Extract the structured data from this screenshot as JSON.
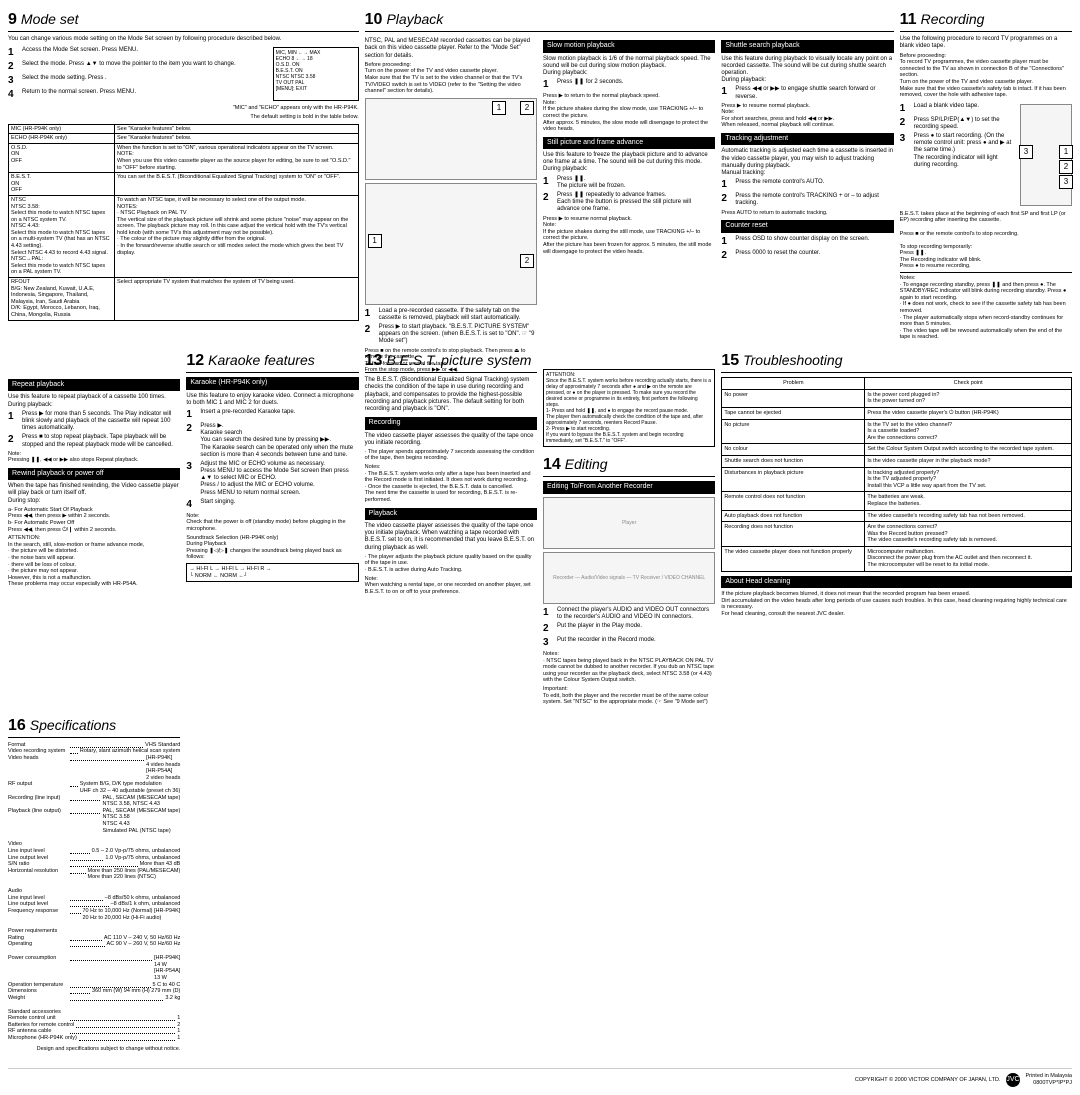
{
  "sections": {
    "s9": {
      "num": "9",
      "title": "Mode set",
      "intro": "You can change various mode setting on the Mode Set screen by following procedure described below.",
      "steps": [
        {
          "n": "1",
          "t": "Access the Mode Set screen. Press MENU."
        },
        {
          "n": "2",
          "t": "Select the mode. Press ▲▼ to move the pointer to the item you want to change."
        },
        {
          "n": "3",
          "t": "Select the mode setting. Press ."
        },
        {
          "n": "4",
          "t": "Return to the normal screen. Press MENU."
        }
      ],
      "boxnote": "MIC, MIN ←→ MAX\nECHO 8 ←→ 18\nO.S.D. ON\nB.E.S.T. ON\nNTSC NTSC 3.58\nTV OUT PAL\n[MENU]: EXIT",
      "boxfoot": "\"MIC\" and \"ECHO\" appears only with the HR-P94K.",
      "tablefoot": "The default setting is bold in the table below.",
      "settings": [
        [
          "MIC (HR-P94K only)",
          "See \"Karaoke features\" below."
        ],
        [
          "ECHO (HR-P94K only)",
          "See \"Karaoke features\" below."
        ],
        [
          "O.S.D.\nON\nOFF",
          "When the function is set to \"ON\", various operational indicators appear on the TV screen.\nNOTE:\nWhen you use this video cassette player as the source player for editing, be sure to set \"O.S.D.\" to \"OFF\" before starting."
        ],
        [
          "B.E.S.T.\nON\nOFF",
          "You can set the B.E.S.T. (Biconditional Equalized Signal Tracking) system to \"ON\" or \"OFF\"."
        ],
        [
          "NTSC\nNTSC 3.58:\nSelect this mode to watch NTSC tapes on a NTSC system TV.\nNTSC 4.43:\nSelect this mode to watch NTSC tapes on a multi-system TV (that has an NTSC 4.43 setting).\nSelect NTSC 4.43 to record 4.43 signal.\nNTSC→PAL:\nSelect this mode to watch NTSC tapes on a PAL system TV.",
          "To watch an NTSC tape, it will be necessary to select one of the output mode.\nNOTES:\n· NTSC Playback on PAL TV\nThe vertical size of the playback picture will shrink and some picture \"noise\" may appear on the screen. The playback picture may roll. In this case adjust the vertical hold with the TV's vertical hold knob (with some TV's this adjustment may not be possible).\n· The colour of the picture may slightly differ from the original.\n· In the forward/reverse shuttle search or still modes select the mode which gives the best TV display."
        ],
        [
          "RFOUT\nB/G: New Zealand, Kuwait, U.A.E, Indonesia, Singapore, Thailand, Malaysia, Iran, Saudi Arabia\nD/K: Egypt, Morocco, Lebanon, Iraq, China, Mongolia, Russia",
          "Select appropriate TV system that matches the system of TV being used."
        ]
      ]
    },
    "s10": {
      "num": "10",
      "title": "Playback",
      "intro": "NTSC, PAL and MESECAM recorded cassettes can be played back on this video cassette player. Refer to the \"Mode Set\" section for details.",
      "before": "Before proceeding:\nTurn on the power of the TV and video cassette player.\nMake sure that the TV is set to the video channel or that the TV's TV/VIDEO switch is set to VIDEO (refer to the \"Setting the video channel\" section for details).",
      "main_steps": [
        {
          "n": "1",
          "t": "Load a pre-recorded cassette. If the safety tab on the cassette is removed, playback will start automatically."
        },
        {
          "n": "2",
          "t": "Press ▶ to start playback. \"B.E.S.T. PICTURE SYSTEM\" appears on the screen. (when B.E.S.T. is set to \"ON\". ☞ \"9 Mode set\")"
        }
      ],
      "main_foot": "Press ■ on the remote control's to stop playback. Then press ⏏ to remove the cassette.\nTo fast-forward or rewind the tape:\nFrom the stop mode, press ▶▶ or ◀◀.",
      "slow": {
        "title": "Slow motion playback",
        "body": "Slow motion playback is 1/6 of the normal playback speed. The sound will be cut during slow motion playback.\nDuring playback:",
        "steps": [
          {
            "n": "1",
            "t": "Press ❚❚ for 2 seconds."
          }
        ],
        "foot": "Press ▶ to return to the normal playback speed.\nNote:\nIf the picture shakes during the slow mode, use TRACKING +/– to correct the picture.\nAfter approx. 5 minutes, the slow mode will disengage to protect the video heads."
      },
      "still": {
        "title": "Still picture and frame advance",
        "body": "Use this feature to freeze the playback picture and to advance one frame at a time. The sound will be cut during this mode.\nDuring playback:",
        "steps": [
          {
            "n": "1",
            "t": "Press ❚❚.\nThe picture will be frozen."
          },
          {
            "n": "2",
            "t": "Press ❚❚ repeatedly to advance frames.\nEach time the button is pressed the still picture will advance one frame."
          }
        ],
        "foot": "Press ▶ to resume normal playback.\nNote:\nIf the picture shakes during the still mode, use TRACKING +/– to correct the picture.\nAfter the picture has been frozen for approx. 5 minutes, the still mode will disengage to protect the video heads."
      },
      "shuttle": {
        "title": "Shuttle search playback",
        "body": "Use this feature during playback to visually locate any point on a recorded cassette. The sound will be cut during shuttle search operation.\nDuring playback:",
        "steps": [
          {
            "n": "1",
            "t": "Press ◀◀ or ▶▶ to engage shuttle search forward or reverse."
          }
        ],
        "foot": "Press ▶ to resume normal playback.\nNote:\nFor short searches, press and hold ◀◀ or ▶▶.\nWhen released, normal playback will continue."
      },
      "track": {
        "title": "Tracking adjustment",
        "body": "Automatic tracking is adjusted each time a cassette is inserted in the video cassette player, you may wish to adjust tracking manually during playback.\nManual tracking:",
        "steps": [
          {
            "n": "1",
            "t": "Press the remote control's AUTO."
          },
          {
            "n": "2",
            "t": "Press the remote control's TRACKING + or – to adjust tracking."
          }
        ],
        "foot": "Press AUTO to return to automatic tracking."
      },
      "counter": {
        "title": "Counter reset",
        "steps": [
          {
            "n": "1",
            "t": "Press OSD to show counter display on the screen."
          },
          {
            "n": "2",
            "t": "Press 0000 to reset the counter."
          }
        ]
      },
      "repeat": {
        "title": "Repeat playback",
        "body": "Use this feature to repeat playback of a cassette 100 times.\nDuring playback:",
        "steps": [
          {
            "n": "1",
            "t": "Press ▶ for more than 5 seconds. The Play indicator will blink slowly and playback of the cassette will repeat 100 times automatically."
          },
          {
            "n": "2",
            "t": "Press ■ to stop repeat playback. Tape playback will be stopped and the repeat playback mode will be cancelled."
          }
        ],
        "foot": "Note:\nPressing ❚❚, ◀◀ or ▶▶ also stops Repeat playback."
      },
      "rewind": {
        "title": "Rewind playback or power off",
        "body": "When the tape has finished rewinding, the Video cassette player will play back or turn itself off.\nDuring stop:",
        "list": "a- For Automatic Start Of Playback\nPress ◀◀, then press ▶ within 2 seconds.\nb- For Automatic Power Off\nPress ◀◀, then press ⏻/❙ within 2 seconds.",
        "att": "ATTENTION:\nIn the search, still, slow-motion or frame advance mode,\n· the picture will be distorted.\n· the noise bars will appear.\n· there will be loss of colour.\n· the picture may not appear.\nHowever, this is not a malfunction.\nThese problems may occur especially with HR-P54A."
      }
    },
    "s11": {
      "num": "11",
      "title": "Recording",
      "intro": "Use the following procedure to record TV programmes on a blank video tape.",
      "before": "Before proceeding:\nTo record TV programmes, the video cassette player must be connected to the TV as shown in connection B of the \"Connections\" section.\nTurn on the power of the TV and video cassette player.\nMake sure that the video cassette's safety tab is intact. If it has been removed, cover the hole with adhesive tape.",
      "steps": [
        {
          "n": "1",
          "t": "Load a blank video tape."
        },
        {
          "n": "2",
          "t": "Press SP/LP/EP(▲▼) to set the recording speed."
        },
        {
          "n": "3",
          "t": "Press ● to start recording. (On the remote control unit: press ● and ▶ at the same time.)\nThe recording indicator will light during recording."
        }
      ],
      "after": "B.E.S.T. takes place at the beginning of each first SP and first LP (or EP) recording after inserting the cassette.\n\nPress ■ or the remote control's to stop recording.\n\nTo stop recording temporarily:\nPress ❚❚.\nThe Recording indicator will blink.\nPress ● to resume recording.",
      "notes": "Notes:\n· To engage recording standby, press ❚❚ and then press ●. The STANDBY/REC indicator will blink during recording standby. Press ● again to start recording.\n· If ● does not work, check to see if the cassette safety tab has been removed.\n· The player automatically stops when record-standby continues for more than 5 minutes.\n· The video tape will be rewound automatically when the end of the tape is reached."
    },
    "s12": {
      "num": "12",
      "title": "Karaoke features",
      "sub": "Karaoke (HR-P94K only)",
      "body": "Use this feature to enjoy karaoke video. Connect a microphone to both MIC 1 and MIC 2 for duets.",
      "steps": [
        {
          "n": "1",
          "t": "Insert a pre-recorded Karaoke tape."
        },
        {
          "n": "2",
          "t": "Press ▶.\nKaraoke search\nYou can search the desired tune by pressing ▶▶.\nThe Karaoke search can be operated only when the mute section is more than 4 seconds between tune and tune."
        },
        {
          "n": "3",
          "t": "Adjust the MIC or ECHO volume as necessary.\nPress MENU to access the Mode Set screen then press ▲▼ to select MIC or ECHO.\nPress / to adjust the MIC or ECHO volume.\nPress MENU to return normal screen."
        },
        {
          "n": "4",
          "t": "Start singing."
        }
      ],
      "note": "Note:\nCheck that the power is off (standby mode) before plugging in the microphone.",
      "sound": "Soundtrack Selection (HR-P94K only)\nDuring Playback\nPressing ❚◁/▷❚ changes the soundtrack being played back as follows:",
      "arrow": "→ HI-FI L → HI-FI L → HI-FI R →\n└ NORM ← NORM ←┘"
    },
    "s13": {
      "num": "13",
      "title": "B.E.S.T. picture system",
      "intro": "The B.E.S.T. (Biconditional Equalized Signal Tracking) system checks the condition of the tape in use during recording and playback, and compensates to provide the highest-possible recording and playback pictures. The default setting for both recording and playback is \"ON\".",
      "rec": {
        "title": "Recording",
        "body": "The video cassette player assesses the quality of the tape once you initiate recording.",
        "list": "· The player spends approximately 7 seconds assessing the condition of the tape, then begins recording.",
        "notes": "Notes:\n· The B.E.S.T. system works only after a tape has been inserted and the Record mode is first initiated. It does not work during recording.\n· Once the cassette is ejected, the B.E.S.T. data is cancelled.\nThe next time the cassette is used for recording, B.E.S.T. is re-performed."
      },
      "pb": {
        "title": "Playback",
        "body": "The video cassette player assesses the quality of the tape once you initiate playback. When watching a tape recorded with B.E.S.T. set to on, it is recommended that you leave B.E.S.T. on during playback as well.",
        "list": "· The player adjusts the playback picture quality based on the quality of the tape in use.\n· B.E.S.T. is active during Auto Tracking.",
        "note": "Note:\nWhen watching a rental tape, or one recorded on another player, set B.E.S.T. to on or off to your preference."
      },
      "att": "ATTENTION:\nSince the B.E.S.T. system works before recording actually starts, there is a delay of approximately 7 seconds after ● and ▶ on the remote are pressed, or ● on the player is pressed. To make sure you record the desired scene or programme in its entirety, first perform the following steps.\n1- Press and hold ❚❚, and ● to engage the record pause mode.\nThe player then automatically check the condition of the tape and, after approximately 7 seconds, reenters Record Pause.\n2- Press ▶ to start recording.\nIf you want to bypass the B.E.S.T. system and begin recording immediately, set \"B.E.S.T.\" to \"OFF\"."
    },
    "s14": {
      "num": "14",
      "title": "Editing",
      "sub": "Editing To/From Another Recorder",
      "steps": [
        {
          "n": "1",
          "t": "Connect the player's AUDIO and VIDEO OUT connectors to the recorder's AUDIO and VIDEO IN connectors."
        },
        {
          "n": "2",
          "t": "Put the player in the Play mode."
        },
        {
          "n": "3",
          "t": "Put the recorder in the Record mode."
        }
      ],
      "notes": "Notes:\n· NTSC tapes being played back in the NTSC PLAYBACK ON PAL TV mode cannot be dubbed to another recorder. If you dub an NTSC tape using your recorder as the playback deck, select NTSC 3.58 (or 4.43) with the Colour System Output switch.",
      "imp": "Important:\nTo edit, both the player and the recorder must be of the same colour system. Set \"NTSC\" to the appropriate mode. (☞ See \"9 Mode set\")"
    },
    "s15": {
      "num": "15",
      "title": "Troubleshooting",
      "rows": [
        [
          "No power",
          "Is the power cord plugged in?\nIs the power turned on?"
        ],
        [
          "Tape cannot be ejected",
          "Press the video cassette player's ⏻ button (HR-P94K)"
        ],
        [
          "No picture",
          "Is the TV set to the video channel?\nIs a cassette loaded?\nAre the connections correct?"
        ],
        [
          "No colour",
          "Set the Colour System Output switch according to the recorded tape system."
        ],
        [
          "Shuttle search does not function",
          "Is the video cassette player in the playback mode?"
        ],
        [
          "Disturbances in playback picture",
          "Is tracking adjusted properly?\nIs the TV adjusted properly?\nInstall this VCP a little way apart from the TV set."
        ],
        [
          "Remote control does not function",
          "The batteries are weak.\nReplace the batteries."
        ],
        [
          "Auto playback does not function",
          "The video cassette's recording safety tab has not been removed."
        ],
        [
          "Recording does not function",
          "Are the connections correct?\nWas the Record button pressed?\nThe video cassette's recording safety tab is removed."
        ],
        [
          "The video cassette player does not function properly",
          "Microcomputer malfunction.\nDisconnect the power plug from the AC outlet and then reconnect it.\nThe microcomputer will be reset to its initial mode."
        ]
      ],
      "head": {
        "title": "About Head cleaning",
        "body": "If the picture playback becomes blurred, it does not mean that the recorded program has been erased.\nDirt accumulated on the video heads after long periods of use causes such troubles. In this case, head cleaning requiring highly technical care is necessary.\nFor head cleaning, consult the nearest JVC dealer."
      }
    },
    "s16": {
      "num": "16",
      "title": "Specifications",
      "specs": [
        [
          "Format",
          "VHS Standard"
        ],
        [
          "Video recording system",
          "Rotary, slant azimuth helical scan system"
        ],
        [
          "Video heads",
          "[HR-P94K]\n4 video heads\n[HR-P54A]\n2 video heads"
        ],
        [
          "RF output",
          "System B/G, D/K type modulation\nUHF ch 32 – 40 adjustable (preset ch 36)"
        ],
        [
          "Recording (line input)",
          "PAL, SECAM (MESECAM tape)\nNTSC 3.58, NTSC 4.43"
        ],
        [
          "Playback (line output)",
          "PAL, SECAM (MESECAM tape)\nNTSC 3.58\nNTSC 4.43\nSimulated PAL (NTSC tape)"
        ],
        [
          "",
          ""
        ],
        [
          "Video",
          ""
        ],
        [
          "Line input level",
          "0.5 – 2.0 Vp-p/75 ohms, unbalanced"
        ],
        [
          "Line output level",
          "1.0 Vp-p/75 ohms, unbalanced"
        ],
        [
          "S/N ratio",
          "More than 43 dB"
        ],
        [
          "Horizontal resolution",
          "More than 250 lines (PAL/MESECAM)\nMore than 220 lines (NTSC)"
        ],
        [
          "",
          ""
        ],
        [
          "Audio",
          ""
        ],
        [
          "Line input level",
          "–8 dBs/50 k ohms, unbalanced"
        ],
        [
          "Line output level",
          "–8 dBs/1 k ohm, unbalanced"
        ],
        [
          "Frequency response",
          "70 Hz to 10,000 Hz (Normal) [HR-P94K]\n20 Hz to 20,000 Hz (Hi-Fi audio)"
        ],
        [
          "",
          ""
        ],
        [
          "Power requirements",
          ""
        ],
        [
          "Rating",
          "AC 110 V – 240 V, 50 Hz/60 Hz"
        ],
        [
          "Operating",
          "AC 90 V – 260 V, 50 Hz/60 Hz"
        ],
        [
          "",
          ""
        ],
        [
          "Power consumption",
          "[HR-P94K]\n14 W\n[HR-P54A]\n13 W"
        ],
        [
          "Operation temperature",
          "5 C to 40 C"
        ],
        [
          "Dimensions",
          "360 mm (W)   94 mm (H)   279 mm (D)"
        ],
        [
          "Weight",
          "3.2 kg"
        ],
        [
          "",
          ""
        ],
        [
          "Standard accessories",
          ""
        ],
        [
          "Remote control unit",
          "1"
        ],
        [
          "Batteries for remote control",
          "2"
        ],
        [
          "RF antenna cable",
          "1"
        ],
        [
          "Microphone (HR-P94K only)",
          "1"
        ]
      ],
      "foot": "Design and specifications subject to change without notice."
    }
  },
  "copyright": "COPYRIGHT © 2000 VICTOR COMPANY OF JAPAN, LTD.",
  "printed": "Printed in Malaysia\n0800TVP*IP*PJ"
}
